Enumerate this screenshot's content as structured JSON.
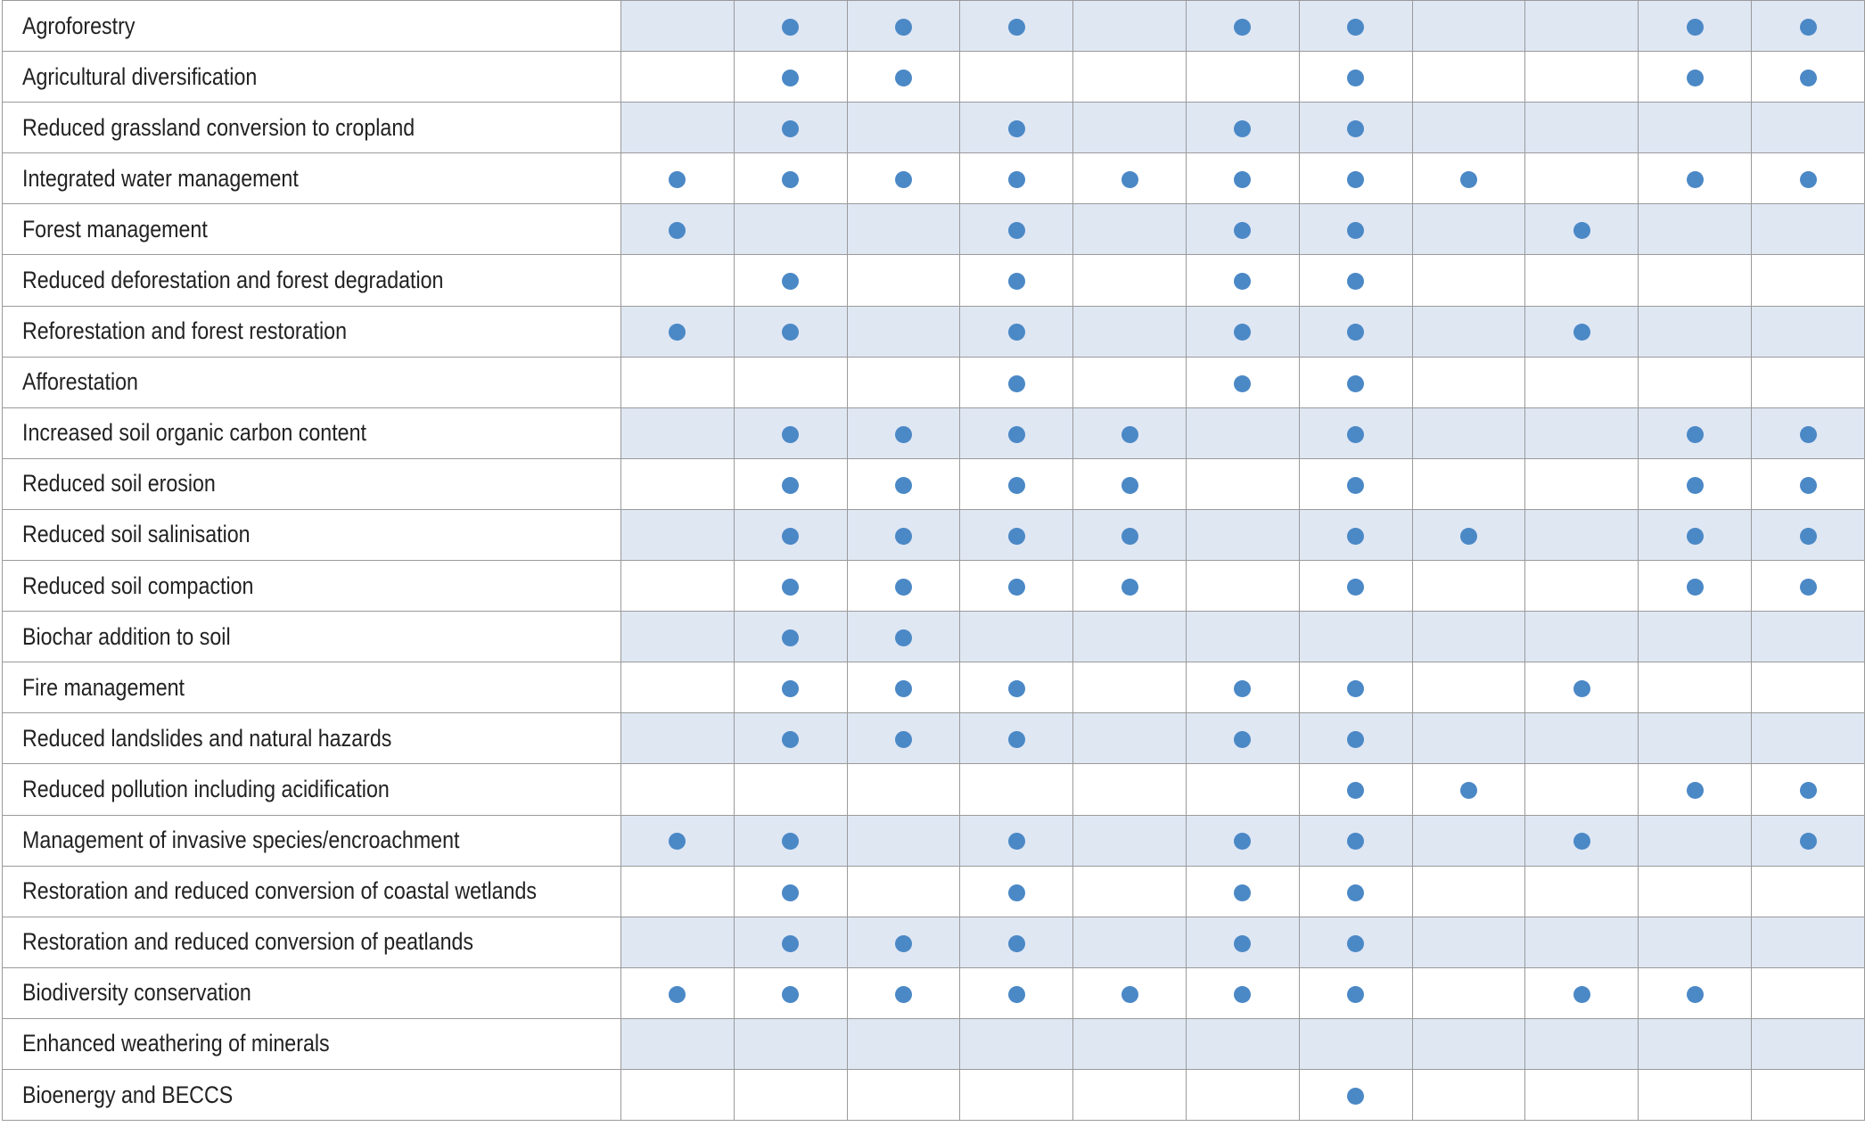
{
  "dot_color": "#4b88c6",
  "shade_color": "#dfe7f3",
  "column_count": 11,
  "rows": [
    {
      "label": "Agroforestry",
      "marks": [
        0,
        1,
        1,
        1,
        0,
        1,
        1,
        0,
        0,
        1,
        1
      ]
    },
    {
      "label": "Agricultural diversification",
      "marks": [
        0,
        1,
        1,
        0,
        0,
        0,
        1,
        0,
        0,
        1,
        1
      ]
    },
    {
      "label": "Reduced grassland conversion to cropland",
      "marks": [
        0,
        1,
        0,
        1,
        0,
        1,
        1,
        0,
        0,
        0,
        0
      ]
    },
    {
      "label": "Integrated water management",
      "marks": [
        1,
        1,
        1,
        1,
        1,
        1,
        1,
        1,
        0,
        1,
        1
      ]
    },
    {
      "label": "Forest management",
      "marks": [
        1,
        0,
        0,
        1,
        0,
        1,
        1,
        0,
        1,
        0,
        0
      ]
    },
    {
      "label": "Reduced deforestation and forest degradation",
      "marks": [
        0,
        1,
        0,
        1,
        0,
        1,
        1,
        0,
        0,
        0,
        0
      ]
    },
    {
      "label": "Reforestation and forest restoration",
      "marks": [
        1,
        1,
        0,
        1,
        0,
        1,
        1,
        0,
        1,
        0,
        0
      ]
    },
    {
      "label": "Afforestation",
      "marks": [
        0,
        0,
        0,
        1,
        0,
        1,
        1,
        0,
        0,
        0,
        0
      ]
    },
    {
      "label": "Increased soil organic carbon content",
      "marks": [
        0,
        1,
        1,
        1,
        1,
        0,
        1,
        0,
        0,
        1,
        1
      ]
    },
    {
      "label": "Reduced soil erosion",
      "marks": [
        0,
        1,
        1,
        1,
        1,
        0,
        1,
        0,
        0,
        1,
        1
      ]
    },
    {
      "label": "Reduced soil salinisation",
      "marks": [
        0,
        1,
        1,
        1,
        1,
        0,
        1,
        1,
        0,
        1,
        1
      ]
    },
    {
      "label": "Reduced soil compaction",
      "marks": [
        0,
        1,
        1,
        1,
        1,
        0,
        1,
        0,
        0,
        1,
        1
      ]
    },
    {
      "label": "Biochar addition to soil",
      "marks": [
        0,
        1,
        1,
        0,
        0,
        0,
        0,
        0,
        0,
        0,
        0
      ]
    },
    {
      "label": "Fire management",
      "marks": [
        0,
        1,
        1,
        1,
        0,
        1,
        1,
        0,
        1,
        0,
        0
      ]
    },
    {
      "label": "Reduced landslides and natural hazards",
      "marks": [
        0,
        1,
        1,
        1,
        0,
        1,
        1,
        0,
        0,
        0,
        0
      ]
    },
    {
      "label": "Reduced pollution including acidification",
      "marks": [
        0,
        0,
        0,
        0,
        0,
        0,
        1,
        1,
        0,
        1,
        1
      ]
    },
    {
      "label": "Management of invasive species/encroachment",
      "marks": [
        1,
        1,
        0,
        1,
        0,
        1,
        1,
        0,
        1,
        0,
        1
      ]
    },
    {
      "label": "Restoration and reduced conversion of coastal wetlands",
      "marks": [
        0,
        1,
        0,
        1,
        0,
        1,
        1,
        0,
        0,
        0,
        0
      ]
    },
    {
      "label": "Restoration and reduced conversion of peatlands",
      "marks": [
        0,
        1,
        1,
        1,
        0,
        1,
        1,
        0,
        0,
        0,
        0
      ]
    },
    {
      "label": "Biodiversity conservation",
      "marks": [
        1,
        1,
        1,
        1,
        1,
        1,
        1,
        0,
        1,
        1,
        0
      ]
    },
    {
      "label": "Enhanced weathering of minerals",
      "marks": [
        0,
        0,
        0,
        0,
        0,
        0,
        0,
        0,
        0,
        0,
        0
      ]
    },
    {
      "label": "Bioenergy and BECCS",
      "marks": [
        0,
        0,
        0,
        0,
        0,
        0,
        1,
        0,
        0,
        0,
        0
      ]
    }
  ]
}
